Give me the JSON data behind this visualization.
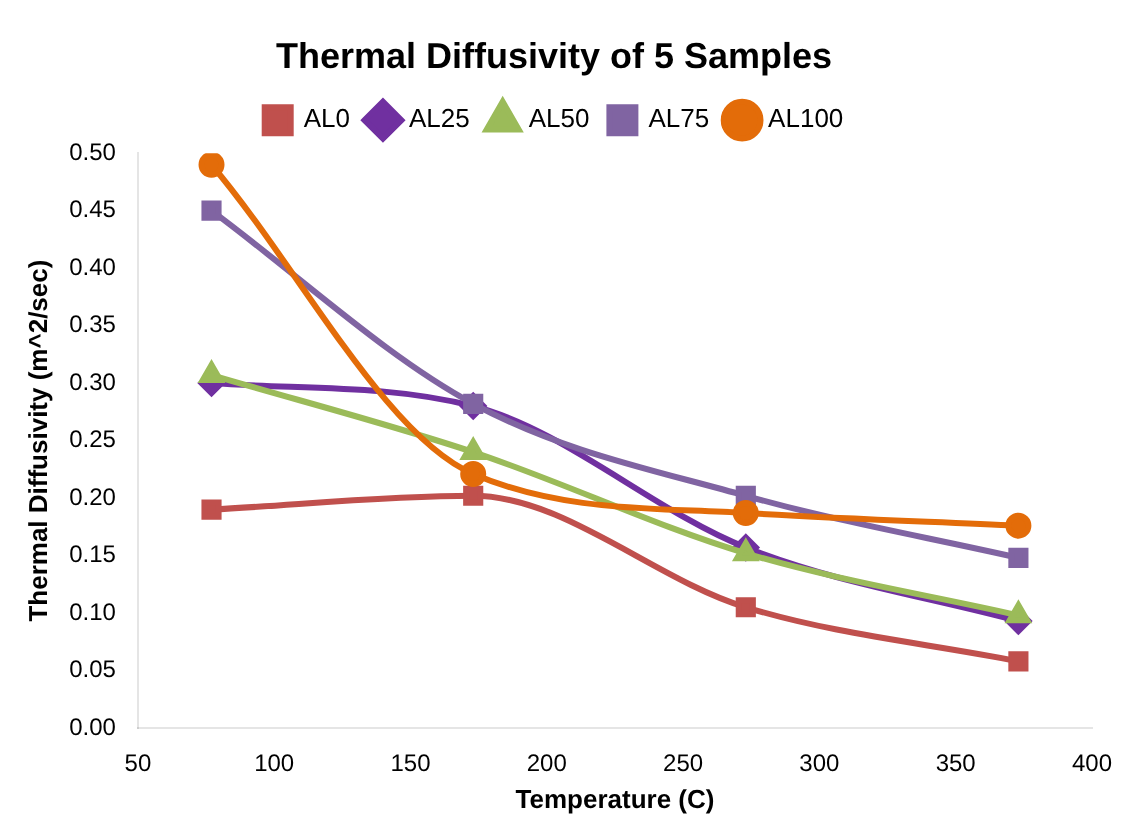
{
  "chart_data": {
    "type": "line",
    "title": "Thermal Diffusivity of 5 Samples",
    "xlabel": "Temperature (C)",
    "ylabel": "Thermal Diffusivity (m^2/sec)",
    "x": [
      77,
      173,
      273,
      373
    ],
    "series": [
      {
        "name": "AL0",
        "color": "#c0504d",
        "marker": "square",
        "values": [
          0.19,
          0.202,
          0.105,
          0.058
        ]
      },
      {
        "name": "AL25",
        "color": "#7030a0",
        "marker": "diamond",
        "values": [
          0.3,
          0.28,
          0.157,
          0.093
        ]
      },
      {
        "name": "AL50",
        "color": "#9bbb59",
        "marker": "triangle",
        "values": [
          0.307,
          0.24,
          0.152,
          0.098
        ]
      },
      {
        "name": "AL75",
        "color": "#8064a2",
        "marker": "square",
        "values": [
          0.45,
          0.282,
          0.202,
          0.148
        ]
      },
      {
        "name": "AL100",
        "color": "#e36c09",
        "marker": "circle",
        "values": [
          0.49,
          0.221,
          0.187,
          0.176
        ]
      }
    ],
    "xlim": [
      50,
      400
    ],
    "xticks": [
      50,
      100,
      150,
      200,
      250,
      300,
      350,
      400
    ],
    "ylim": [
      0,
      0.5
    ],
    "yticks": [
      {
        "value": 0,
        "label": "0.00"
      },
      {
        "value": 0.05,
        "label": "0.05"
      },
      {
        "value": 0.1,
        "label": "0.10"
      },
      {
        "value": 0.15,
        "label": "0.15"
      },
      {
        "value": 0.2,
        "label": "0.20"
      },
      {
        "value": 0.25,
        "label": "0.25"
      },
      {
        "value": 0.3,
        "label": "0.30"
      },
      {
        "value": 0.35,
        "label": "0.35"
      },
      {
        "value": 0.4,
        "label": "0.40"
      },
      {
        "value": 0.45,
        "label": "0.45"
      },
      {
        "value": 0.5,
        "label": "0.50"
      }
    ],
    "grid": false,
    "legend": "top",
    "line_style": "solid"
  }
}
